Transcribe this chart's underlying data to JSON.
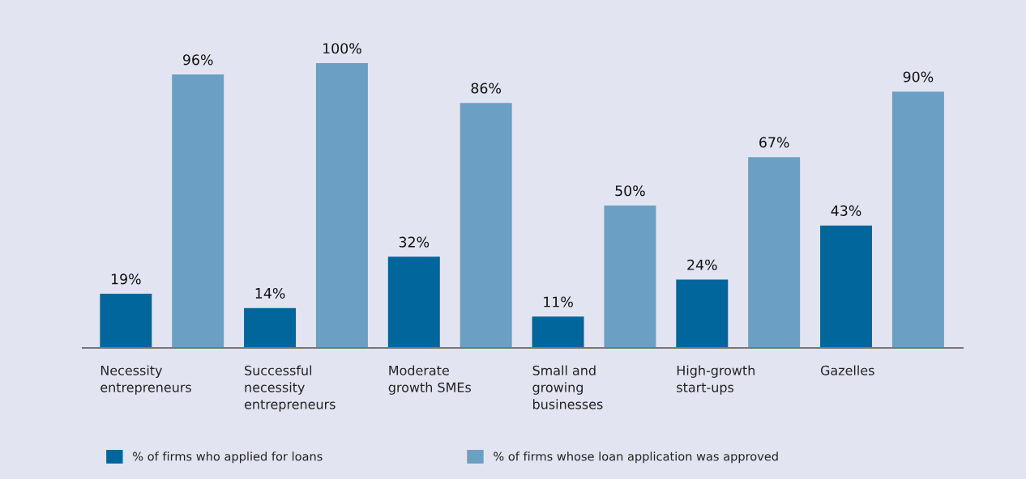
{
  "chart_data": {
    "type": "bar",
    "categories": [
      "Necessity\nentrepreneurs",
      "Successful\nnecessity\nentrepreneurs",
      "Moderate\ngrowth SMEs",
      "Small and\ngrowing\nbusinesses",
      "High-growth\nstart-ups",
      "Gazelles"
    ],
    "series": [
      {
        "name": "% of firms who applied for loans",
        "color": "#00669c",
        "values": [
          19,
          14,
          32,
          11,
          24,
          43
        ],
        "value_labels": [
          "19%",
          "14%",
          "32%",
          "11%",
          "24%",
          "43%"
        ]
      },
      {
        "name": "% of firms whose loan application was approved",
        "color": "#6b9fc4",
        "values": [
          96,
          100,
          86,
          50,
          67,
          90
        ],
        "value_labels": [
          "96%",
          "100%",
          "86%",
          "50%",
          "67%",
          "90%"
        ]
      }
    ],
    "legend": "bottom",
    "tick_labels": "x"
  }
}
